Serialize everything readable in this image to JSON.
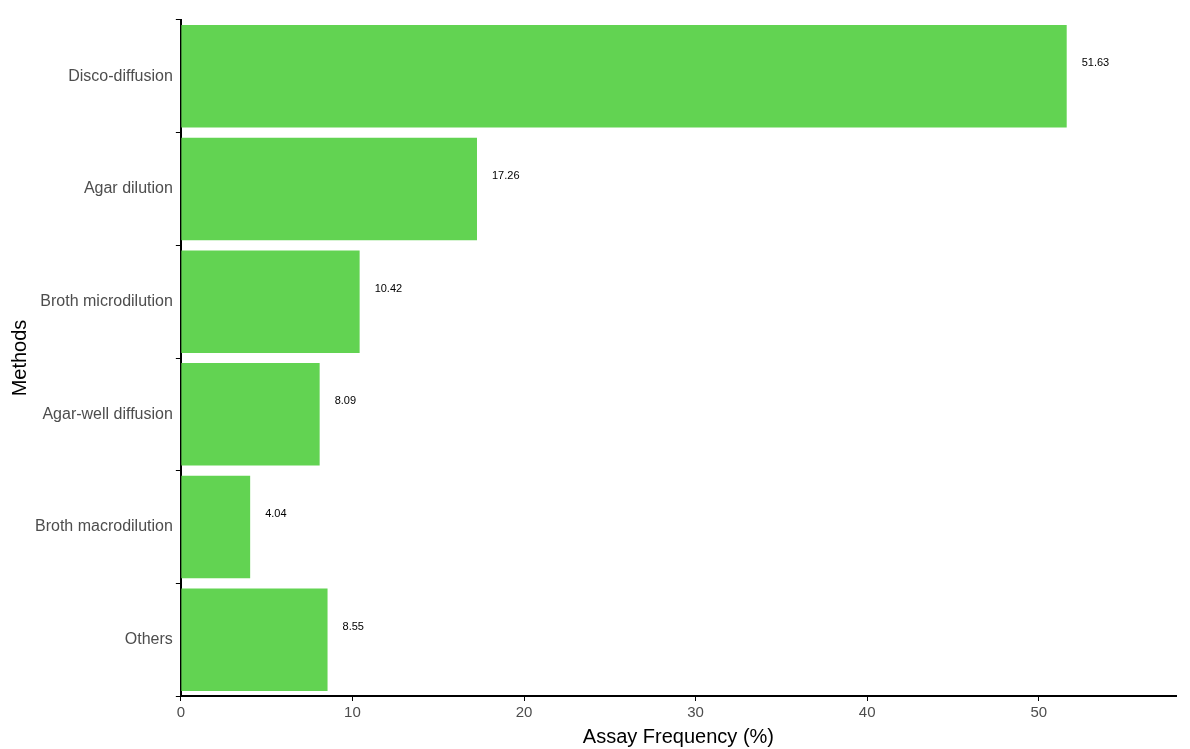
{
  "chart_data": {
    "type": "bar",
    "orientation": "horizontal",
    "xlabel": "Assay Frequency (%)",
    "ylabel": "Methods",
    "categories": [
      "Disco-diffusion",
      "Agar dilution",
      "Broth microdilution",
      "Agar-well diffusion",
      "Broth macrodilution",
      "Others"
    ],
    "values": [
      51.63,
      17.26,
      10.42,
      8.09,
      4.04,
      8.55
    ],
    "color": "#62d352",
    "xlim": [
      0,
      58
    ],
    "xticks": [
      0,
      10,
      20,
      30,
      40,
      50
    ],
    "grid": false,
    "legend": false,
    "data_labels": true
  }
}
